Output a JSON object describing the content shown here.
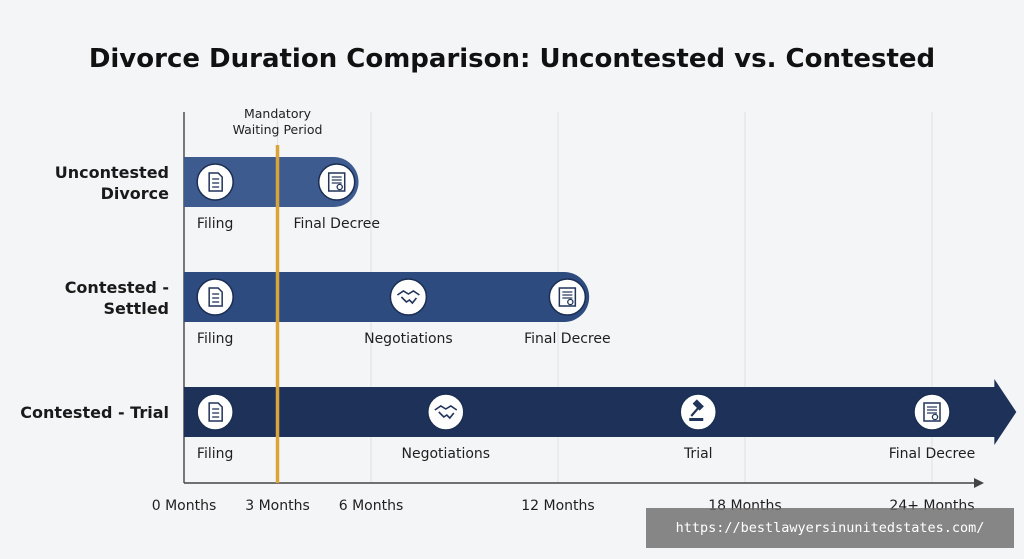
{
  "chart_data": {
    "type": "bar",
    "title": "Divorce Duration Comparison: Uncontested vs. Contested",
    "x_unit": "months",
    "xlim": [
      0,
      24
    ],
    "grid": true,
    "ticks": [
      {
        "value": 0,
        "label": "0 Months"
      },
      {
        "value": 3,
        "label": "3 Months"
      },
      {
        "value": 6,
        "label": "6 Months"
      },
      {
        "value": 12,
        "label": "12 Months"
      },
      {
        "value": 18,
        "label": "18 Months"
      },
      {
        "value": 24,
        "label": "24+ Months"
      }
    ],
    "reference_line": {
      "value": 3,
      "label_line1": "Mandatory",
      "label_line2": "Waiting Period",
      "color": "#d9a53a"
    },
    "rows": [
      {
        "label_line1": "Uncontested",
        "label_line2": "Divorce",
        "start": 0,
        "end": 5.6,
        "color": "#3e5b8f",
        "arrow": false,
        "milestones": [
          {
            "value": 1,
            "label": "Filing",
            "icon": "document-icon"
          },
          {
            "value": 4.9,
            "label": "Final Decree",
            "icon": "certificate-icon"
          }
        ]
      },
      {
        "label_line1": "Contested -",
        "label_line2": "Settled",
        "start": 0,
        "end": 13,
        "color": "#2d4b7e",
        "arrow": false,
        "milestones": [
          {
            "value": 1,
            "label": "Filing",
            "icon": "document-icon"
          },
          {
            "value": 7.2,
            "label": "Negotiations",
            "icon": "handshake-icon"
          },
          {
            "value": 12.3,
            "label": "Final Decree",
            "icon": "certificate-icon"
          }
        ]
      },
      {
        "label_line1": "Contested - Trial",
        "label_line2": "",
        "start": 0,
        "end": 26,
        "color": "#1e3259",
        "arrow": true,
        "milestones": [
          {
            "value": 1,
            "label": "Filing",
            "icon": "document-icon"
          },
          {
            "value": 8.4,
            "label": "Negotiations",
            "icon": "handshake-icon"
          },
          {
            "value": 16.5,
            "label": "Trial",
            "icon": "gavel-icon"
          },
          {
            "value": 24,
            "label": "Final Decree",
            "icon": "certificate-icon"
          }
        ]
      }
    ]
  },
  "watermark": "https://bestlawyersinunitedstates.com/"
}
